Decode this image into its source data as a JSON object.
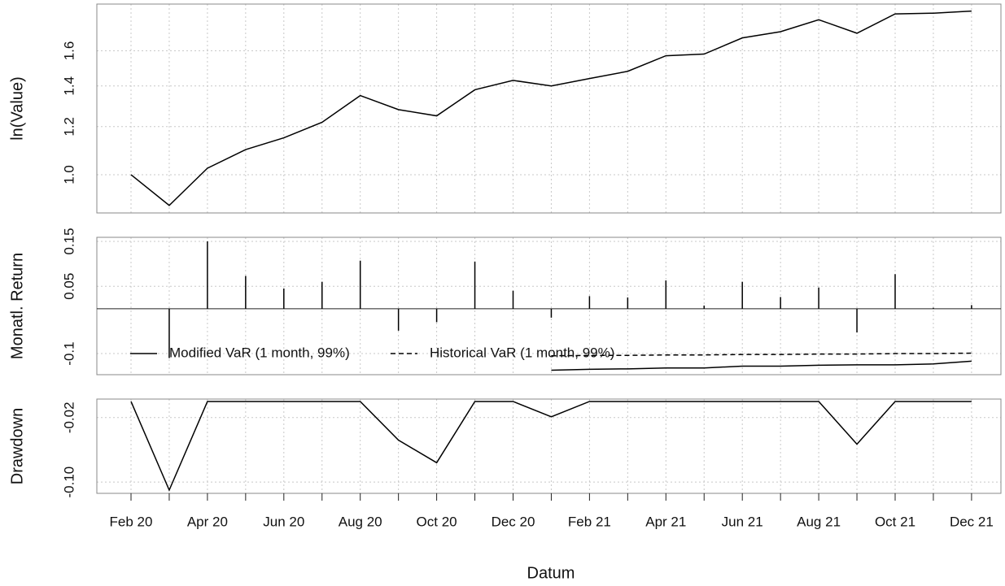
{
  "chart_data": {
    "type": "performance_summary",
    "xlabel": "Datum",
    "categories": [
      "Feb 20",
      null,
      "Apr 20",
      null,
      "Jun 20",
      null,
      "Aug 20",
      null,
      "Oct 20",
      null,
      "Dec 20",
      null,
      "Feb 21",
      null,
      "Apr 21",
      null,
      "Jun 21",
      null,
      "Aug 21",
      null,
      "Oct 21",
      null,
      "Dec 21"
    ],
    "grid": true,
    "panels": [
      {
        "type": "line",
        "ylabel": "ln(Value)",
        "log": true,
        "color": "#000000",
        "ylim": [
          0.865,
          1.91
        ],
        "yticks": [
          {
            "value": 1,
            "label": "1.0"
          },
          1.2,
          1.4,
          1.6
        ],
        "values": [
          1.0,
          0.89,
          1.025,
          1.1,
          1.15,
          1.22,
          1.35,
          1.28,
          1.25,
          1.38,
          1.43,
          1.4,
          1.44,
          1.48,
          1.57,
          1.58,
          1.68,
          1.72,
          1.8,
          1.71,
          1.84,
          1.845,
          1.86
        ]
      },
      {
        "type": "bar",
        "ylabel": "Monatl. Return",
        "color": "#000000",
        "ylim": [
          -0.147,
          0.159
        ],
        "yticks": [
          0.15,
          0.05,
          -0.1
        ],
        "values": [
          null,
          -0.11,
          0.15,
          0.073,
          0.045,
          0.06,
          0.107,
          -0.049,
          -0.03,
          0.105,
          0.04,
          -0.02,
          0.028,
          0.025,
          0.063,
          0.007,
          0.06,
          0.026,
          0.047,
          -0.053,
          0.077,
          0.002,
          0.008
        ],
        "series": [
          {
            "name": "Modified VaR (1 month, 99%)",
            "color": "#000000",
            "dash": "solid",
            "values": [
              null,
              null,
              null,
              null,
              null,
              null,
              null,
              null,
              null,
              null,
              null,
              -0.137,
              -0.135,
              -0.134,
              -0.132,
              -0.132,
              -0.128,
              -0.128,
              -0.126,
              -0.125,
              -0.125,
              -0.123,
              -0.117
            ]
          },
          {
            "name": "Historical VaR (1 month, 99%)",
            "color": "#000000",
            "dash": "dashed",
            "values": [
              null,
              null,
              null,
              null,
              null,
              null,
              null,
              null,
              null,
              null,
              null,
              -0.105,
              -0.104,
              -0.104,
              -0.103,
              -0.103,
              -0.102,
              -0.102,
              -0.101,
              -0.101,
              -0.1,
              -0.1,
              -0.099
            ]
          }
        ]
      },
      {
        "type": "line",
        "ylabel": "Drawdown",
        "color": "#000000",
        "ylim": [
          -0.114,
          0.003
        ],
        "yticks": [
          -0.02,
          {
            "value": -0.1,
            "label": "-0.10"
          }
        ],
        "values": [
          0,
          -0.11,
          0,
          0,
          0,
          0,
          0,
          -0.048,
          -0.076,
          0,
          0,
          -0.019,
          0,
          0,
          0,
          0,
          0,
          0,
          0,
          -0.053,
          0,
          0,
          0
        ]
      }
    ]
  }
}
